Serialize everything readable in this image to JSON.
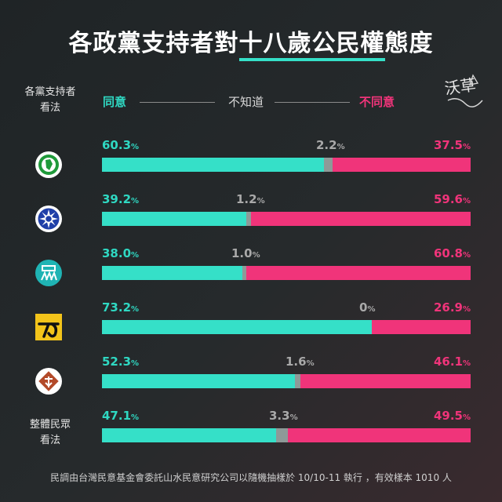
{
  "title_part1": "各政黨支持者對",
  "title_part2": "十八歲公民權",
  "title_part3": "態度",
  "column_header_line1": "各黨支持者",
  "column_header_line2": "看法",
  "legend": {
    "agree": "同意",
    "unknown": "不知道",
    "disagree": "不同意"
  },
  "signature": "沃草",
  "footnote": "民調由台灣民意基金會委託山水民意研究公司以隨機抽樣於 10/10-11 執行 ，有效樣本 1010 人",
  "colors": {
    "agree": "#35e0c8",
    "unknown": "#8e9a98",
    "disagree": "#f0347a"
  },
  "chart_data": {
    "type": "bar",
    "stacked": true,
    "orientation": "horizontal",
    "series_names": [
      "同意",
      "不知道",
      "不同意"
    ],
    "rows": [
      {
        "party_icon": "dpp-logo-icon",
        "agree": "60.3",
        "unknown": "2.2",
        "disagree": "37.5"
      },
      {
        "party_icon": "kmt-logo-icon",
        "agree": "39.2",
        "unknown": "1.2",
        "disagree": "59.6"
      },
      {
        "party_icon": "tpp-logo-icon",
        "agree": "38.0",
        "unknown": "1.0",
        "disagree": "60.8"
      },
      {
        "party_icon": "npp-logo-icon",
        "agree": "73.2",
        "unknown": "0",
        "disagree": "26.9"
      },
      {
        "party_icon": "tsp-logo-icon",
        "agree": "52.3",
        "unknown": "1.6",
        "disagree": "46.1"
      },
      {
        "label_line1": "整體民眾",
        "label_line2": "看法",
        "agree": "47.1",
        "unknown": "3.3",
        "disagree": "49.5"
      }
    ],
    "unit": "%"
  }
}
